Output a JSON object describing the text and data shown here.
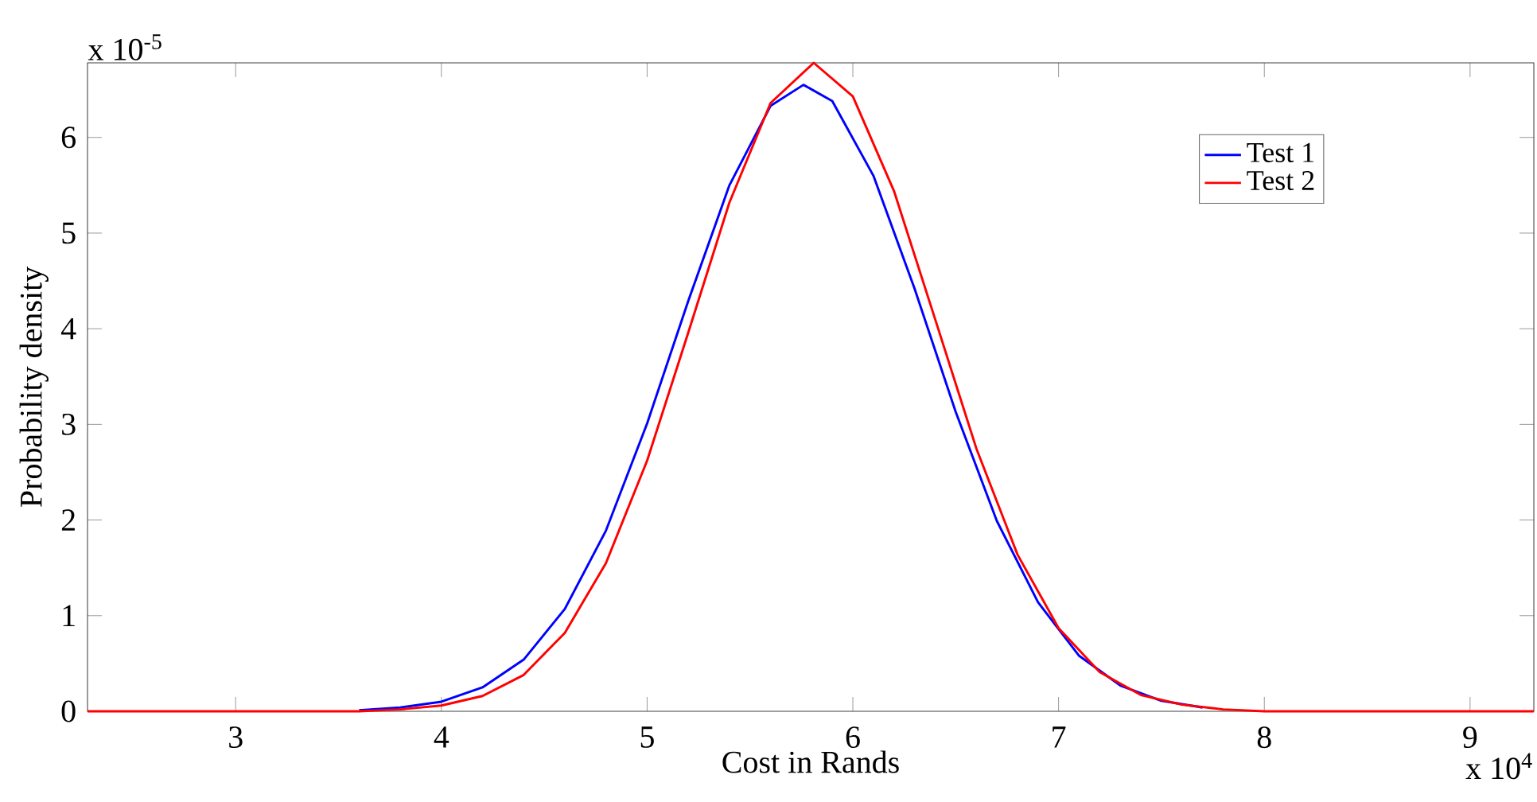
{
  "chart_data": {
    "type": "line",
    "xlabel": "Cost in Rands",
    "ylabel": "Probability density",
    "annotations": [
      "x 10$^{-5}$",
      "x 10$^{4}$"
    ],
    "xlim": [
      2.28,
      9.31
    ],
    "xticks": [
      3,
      4,
      5,
      6,
      7,
      8,
      9
    ],
    "ylim": [
      0,
      6.78
    ],
    "yticks": [
      0,
      1,
      2,
      3,
      4,
      5,
      6
    ],
    "legend": "top right",
    "grid": false,
    "series": [
      {
        "name": "Test 1",
        "color": "#0000ff",
        "x": [
          3.6,
          3.8,
          4.0,
          4.2,
          4.4,
          4.6,
          4.8,
          5.0,
          5.2,
          5.4,
          5.6,
          5.76,
          5.9,
          6.1,
          6.3,
          6.5,
          6.7,
          6.9,
          7.1,
          7.3,
          7.5,
          7.7
        ],
        "values": [
          0.01,
          0.04,
          0.1,
          0.25,
          0.54,
          1.07,
          1.89,
          3.01,
          4.29,
          5.5,
          6.33,
          6.55,
          6.38,
          5.6,
          4.42,
          3.13,
          1.99,
          1.14,
          0.58,
          0.27,
          0.11,
          0.04
        ]
      },
      {
        "name": "Test 2",
        "color": "#ff0000",
        "x": [
          2.28,
          3.0,
          3.6,
          3.8,
          4.0,
          4.2,
          4.4,
          4.6,
          4.8,
          5.0,
          5.2,
          5.4,
          5.6,
          5.81,
          6.0,
          6.2,
          6.4,
          6.6,
          6.8,
          7.0,
          7.2,
          7.4,
          7.6,
          7.8,
          8.0,
          9.31
        ],
        "values": [
          0,
          0,
          0,
          0.02,
          0.06,
          0.16,
          0.38,
          0.82,
          1.55,
          2.62,
          3.96,
          5.32,
          6.36,
          6.78,
          6.43,
          5.44,
          4.1,
          2.75,
          1.64,
          0.87,
          0.41,
          0.17,
          0.07,
          0.02,
          0,
          0
        ]
      }
    ]
  }
}
